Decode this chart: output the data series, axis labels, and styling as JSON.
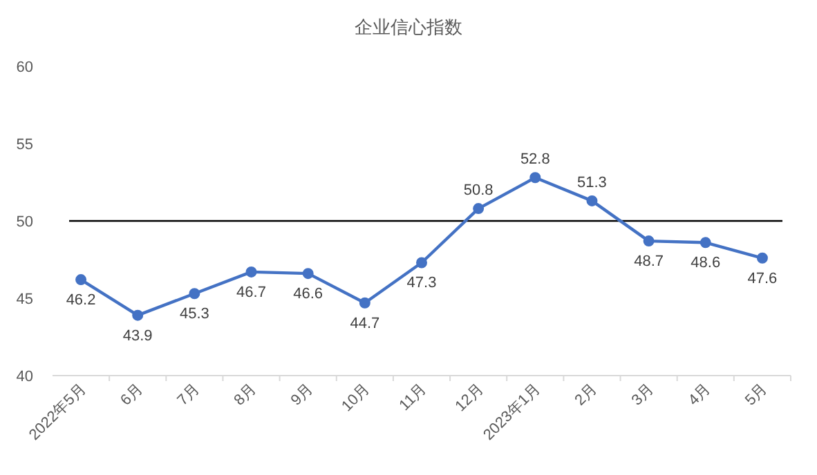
{
  "chart_data": {
    "type": "line",
    "title": "企业信心指数",
    "categories": [
      "2022年5月",
      "6月",
      "7月",
      "8月",
      "9月",
      "10月",
      "11月",
      "12月",
      "2023年1月",
      "2月",
      "3月",
      "4月",
      "5月"
    ],
    "series": [
      {
        "color": "#4472c4",
        "values": [
          46.2,
          43.9,
          45.3,
          46.7,
          46.6,
          44.7,
          47.3,
          50.8,
          52.8,
          51.3,
          48.7,
          48.6,
          47.6
        ]
      }
    ],
    "ylim": [
      40,
      60
    ],
    "yticks": [
      40,
      45,
      50,
      55,
      60
    ],
    "ref_lines": [
      {
        "axis": "y",
        "value": 50,
        "color": "#000000"
      }
    ],
    "data_labels": true,
    "marker": "circle",
    "line_style": "solid",
    "grid": false
  }
}
